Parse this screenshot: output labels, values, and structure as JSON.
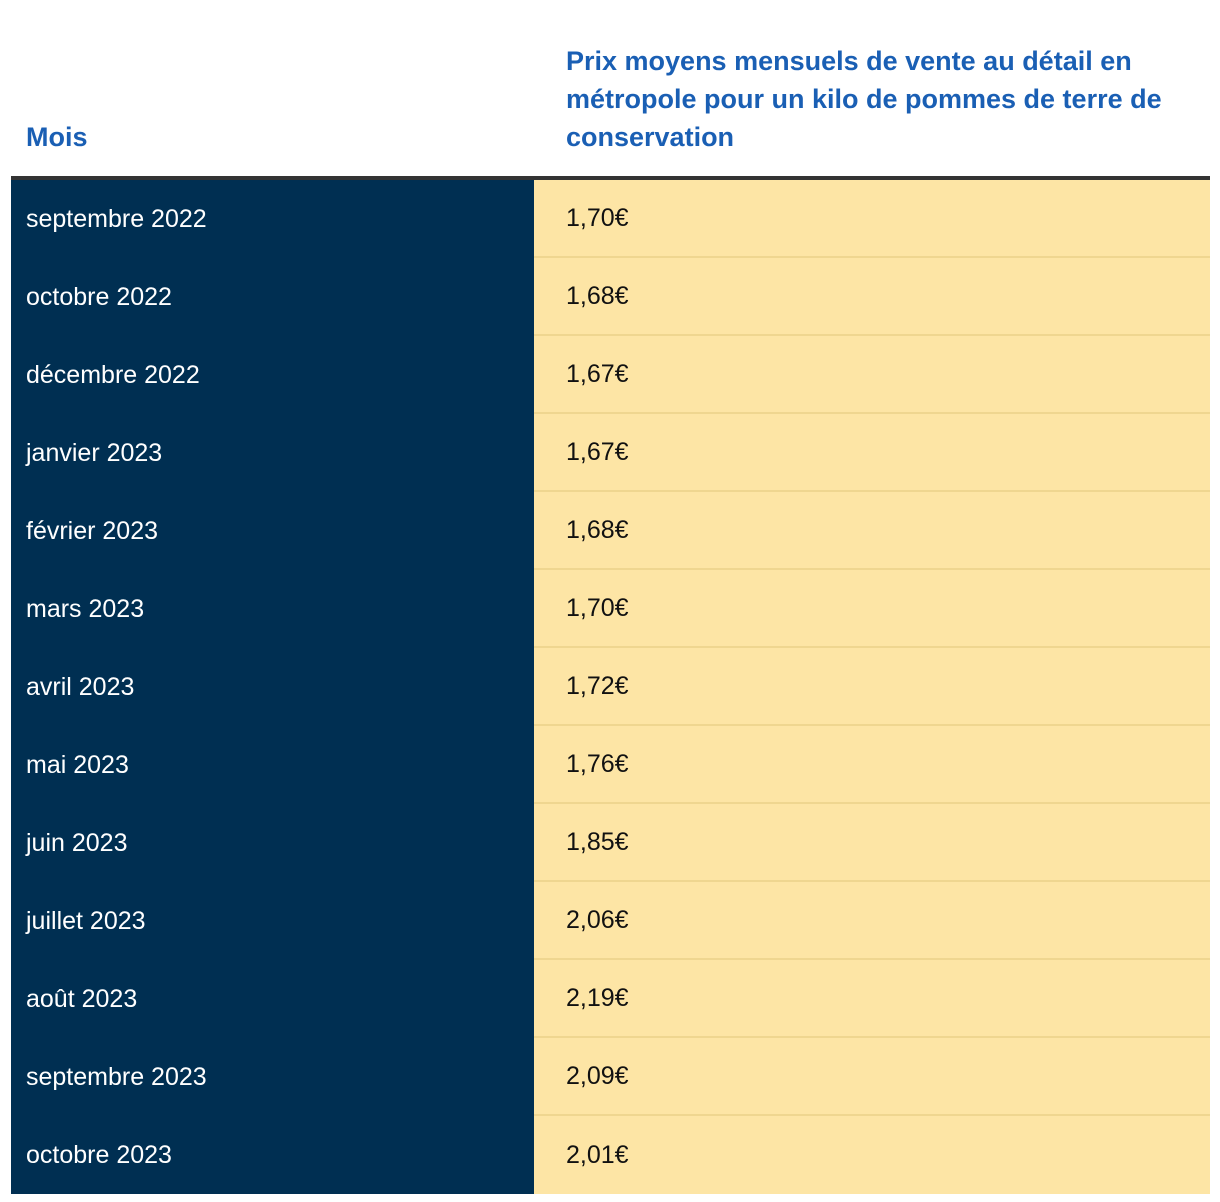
{
  "chart_data": {
    "type": "table",
    "columns": [
      "Mois",
      "Prix moyens mensuels de vente au détail en métropole pour un kilo de pommes de terre de conservation"
    ],
    "rows": [
      {
        "month": "septembre 2022",
        "price": "1,70€"
      },
      {
        "month": "octobre 2022",
        "price": "1,68€"
      },
      {
        "month": "décembre 2022",
        "price": "1,67€"
      },
      {
        "month": "janvier 2023",
        "price": "1,67€"
      },
      {
        "month": "février 2023",
        "price": "1,68€"
      },
      {
        "month": "mars 2023",
        "price": "1,70€"
      },
      {
        "month": "avril 2023",
        "price": "1,72€"
      },
      {
        "month": "mai 2023",
        "price": "1,76€"
      },
      {
        "month": "juin 2023",
        "price": "1,85€"
      },
      {
        "month": "juillet 2023",
        "price": "2,06€"
      },
      {
        "month": "août 2023",
        "price": "2,19€"
      },
      {
        "month": "septembre 2023",
        "price": "2,09€"
      },
      {
        "month": "octobre 2023",
        "price": "2,01€"
      }
    ],
    "colors": {
      "header_text": "#1a5fb4",
      "month_column_bg": "#002f52",
      "price_column_bg": "#fde5a5"
    }
  }
}
